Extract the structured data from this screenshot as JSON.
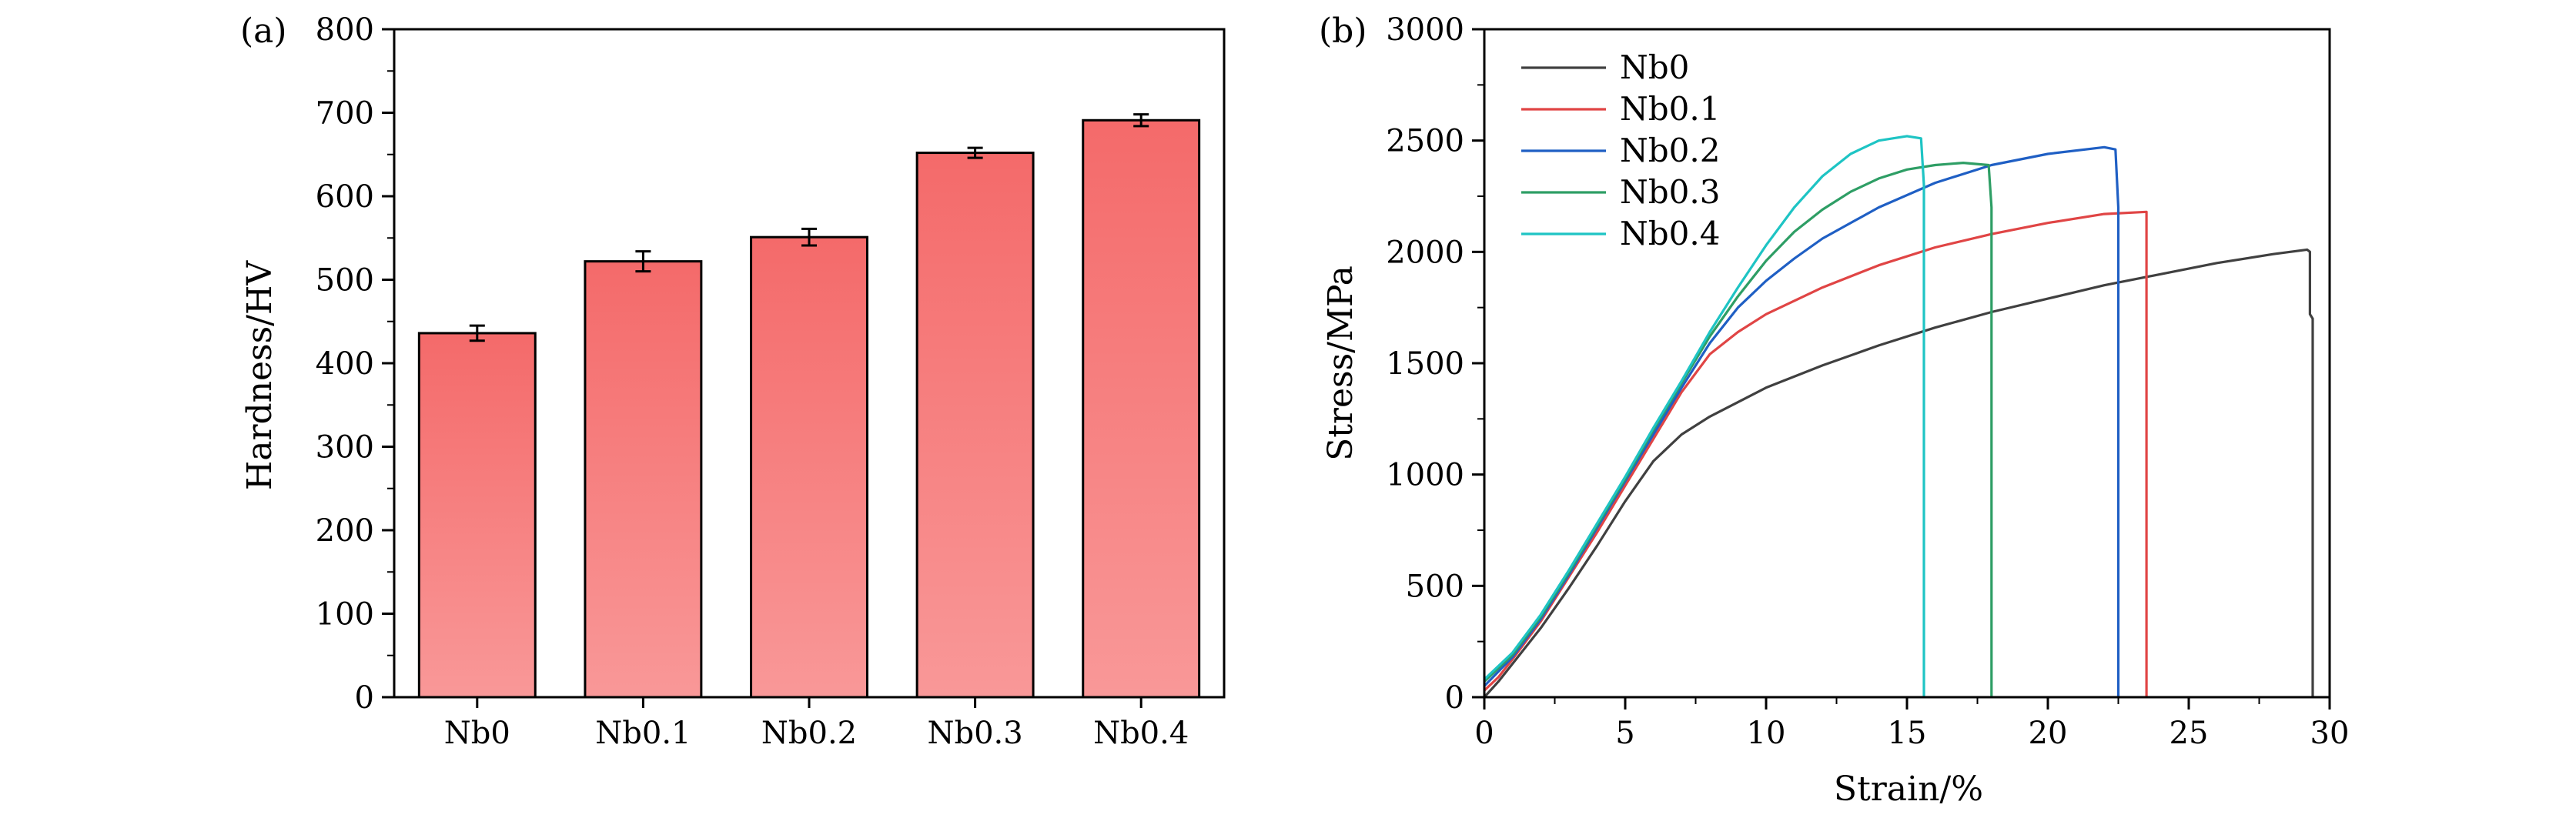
{
  "chart_data": [
    {
      "type": "bar",
      "panel_label": "(a)",
      "categories": [
        "Nb0",
        "Nb0.1",
        "Nb0.2",
        "Nb0.3",
        "Nb0.4"
      ],
      "values": [
        436,
        522,
        551,
        652,
        691
      ],
      "errors": [
        9,
        12,
        10,
        6,
        7
      ],
      "xlabel": "",
      "ylabel": "Hardness/HV",
      "ylim": [
        0,
        800
      ],
      "yticks": [
        0,
        100,
        200,
        300,
        400,
        500,
        600,
        700,
        800
      ],
      "ytick_labels": [
        "0",
        "100",
        "200",
        "300",
        "400",
        "500",
        "600",
        "700",
        "800"
      ],
      "bar_color_top": "#f46a6a",
      "bar_color_bottom": "#f99898",
      "grid": false
    },
    {
      "type": "line",
      "panel_label": "(b)",
      "xlabel": "Strain/%",
      "ylabel": "Stress/MPa",
      "xlim": [
        0,
        30
      ],
      "ylim": [
        0,
        3000
      ],
      "xticks": [
        0,
        5,
        10,
        15,
        20,
        25,
        30
      ],
      "xtick_labels": [
        "0",
        "5",
        "10",
        "15",
        "20",
        "25",
        "30"
      ],
      "yticks": [
        0,
        500,
        1000,
        1500,
        2000,
        2500,
        3000
      ],
      "ytick_labels": [
        "0",
        "500",
        "1000",
        "1500",
        "2000",
        "2500",
        "3000"
      ],
      "legend_position": "top-left",
      "grid": false,
      "series": [
        {
          "name": "Nb0",
          "color": "#404040",
          "x": [
            0,
            0.5,
            1,
            2,
            3,
            4,
            5,
            6,
            7,
            8,
            10,
            12,
            14,
            16,
            18,
            20,
            22,
            24,
            26,
            28,
            29.2,
            29.3,
            29.3,
            29.4,
            29.4
          ],
          "y": [
            0,
            70,
            150,
            310,
            490,
            680,
            880,
            1060,
            1180,
            1260,
            1390,
            1490,
            1580,
            1660,
            1730,
            1790,
            1850,
            1900,
            1950,
            1990,
            2010,
            2000,
            1720,
            1700,
            0
          ]
        },
        {
          "name": "Nb0.1",
          "color": "#e04545",
          "x": [
            0,
            0.5,
            1,
            2,
            3,
            4,
            5,
            6,
            7,
            8,
            9,
            10,
            12,
            14,
            16,
            18,
            20,
            22,
            23.5,
            23.5
          ],
          "y": [
            30,
            90,
            170,
            340,
            540,
            740,
            950,
            1160,
            1370,
            1540,
            1640,
            1720,
            1840,
            1940,
            2020,
            2080,
            2130,
            2170,
            2180,
            0
          ]
        },
        {
          "name": "Nb0.2",
          "color": "#1f5fc4",
          "x": [
            0,
            1,
            2,
            3,
            4,
            5,
            6,
            7,
            8,
            9,
            10,
            11,
            12,
            14,
            16,
            18,
            20,
            22,
            22.4,
            22.5,
            22.5,
            22.5
          ],
          "y": [
            50,
            180,
            350,
            550,
            760,
            970,
            1180,
            1390,
            1590,
            1750,
            1870,
            1970,
            2060,
            2200,
            2310,
            2390,
            2440,
            2470,
            2460,
            2200,
            2180,
            0
          ]
        },
        {
          "name": "Nb0.3",
          "color": "#2e9e65",
          "x": [
            0,
            1,
            2,
            3,
            4,
            5,
            6,
            7,
            8,
            9,
            10,
            11,
            12,
            13,
            14,
            15,
            16,
            17,
            17.9,
            18.0,
            18.0
          ],
          "y": [
            70,
            190,
            360,
            560,
            770,
            980,
            1200,
            1410,
            1620,
            1800,
            1960,
            2090,
            2190,
            2270,
            2330,
            2370,
            2390,
            2400,
            2390,
            2200,
            0
          ]
        },
        {
          "name": "Nb0.4",
          "color": "#1ec4c4",
          "x": [
            0,
            1,
            2,
            3,
            4,
            5,
            6,
            7,
            8,
            9,
            10,
            11,
            12,
            13,
            14,
            15,
            15.5,
            15.6,
            15.6
          ],
          "y": [
            80,
            200,
            370,
            570,
            780,
            990,
            1210,
            1420,
            1640,
            1840,
            2030,
            2200,
            2340,
            2440,
            2500,
            2520,
            2510,
            2300,
            0
          ]
        }
      ]
    }
  ]
}
